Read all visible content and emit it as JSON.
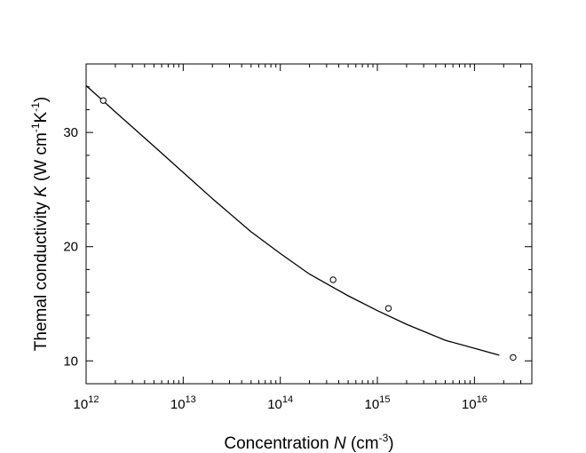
{
  "chart_data": {
    "type": "scatter",
    "x_scale": "log",
    "y_scale": "linear",
    "xlim": [
      1000000000000.0,
      3.9e+16
    ],
    "ylim": [
      8.0,
      36.0
    ],
    "grid": false,
    "x_ticks": [
      {
        "value": 1000000000000.0,
        "base": "10",
        "exp": "12"
      },
      {
        "value": 10000000000000.0,
        "base": "10",
        "exp": "13"
      },
      {
        "value": 100000000000000.0,
        "base": "10",
        "exp": "14"
      },
      {
        "value": 1000000000000000.0,
        "base": "10",
        "exp": "15"
      },
      {
        "value": 1e+16,
        "base": "10",
        "exp": "16"
      }
    ],
    "y_ticks": [
      {
        "value": 10,
        "label": "10"
      },
      {
        "value": 20,
        "label": "20"
      },
      {
        "value": 30,
        "label": "30"
      }
    ],
    "xlabel": {
      "main": "Concentration ",
      "var": "N",
      "unit_open": " (cm",
      "unit_exp": "-3",
      "unit_close": ")"
    },
    "ylabel": {
      "main": "Themal conductivity ",
      "var": "K",
      "unit_open": " (W cm",
      "exp1": "-1",
      "mid": "K",
      "exp2": "-1",
      "unit_close": ")"
    },
    "series": [
      {
        "style": "markers-open-circle",
        "x": [
          1500000000000.0,
          350000000000000.0,
          1300000000000000.0,
          2.5e+16
        ],
        "y": [
          32.8,
          17.1,
          14.6,
          10.3
        ]
      },
      {
        "style": "line",
        "x": [
          1000000000000.0,
          2000000000000.0,
          5000000000000.0,
          10000000000000.0,
          20000000000000.0,
          50000000000000.0,
          100000000000000.0,
          200000000000000.0,
          500000000000000.0,
          1000000000000000.0,
          2000000000000000.0,
          5000000000000000.0,
          1e+16,
          1.8e+16
        ],
        "y": [
          34.1,
          31.8,
          28.8,
          26.5,
          24.2,
          21.3,
          19.4,
          17.6,
          15.7,
          14.4,
          13.2,
          11.8,
          11.1,
          10.5
        ]
      }
    ]
  }
}
